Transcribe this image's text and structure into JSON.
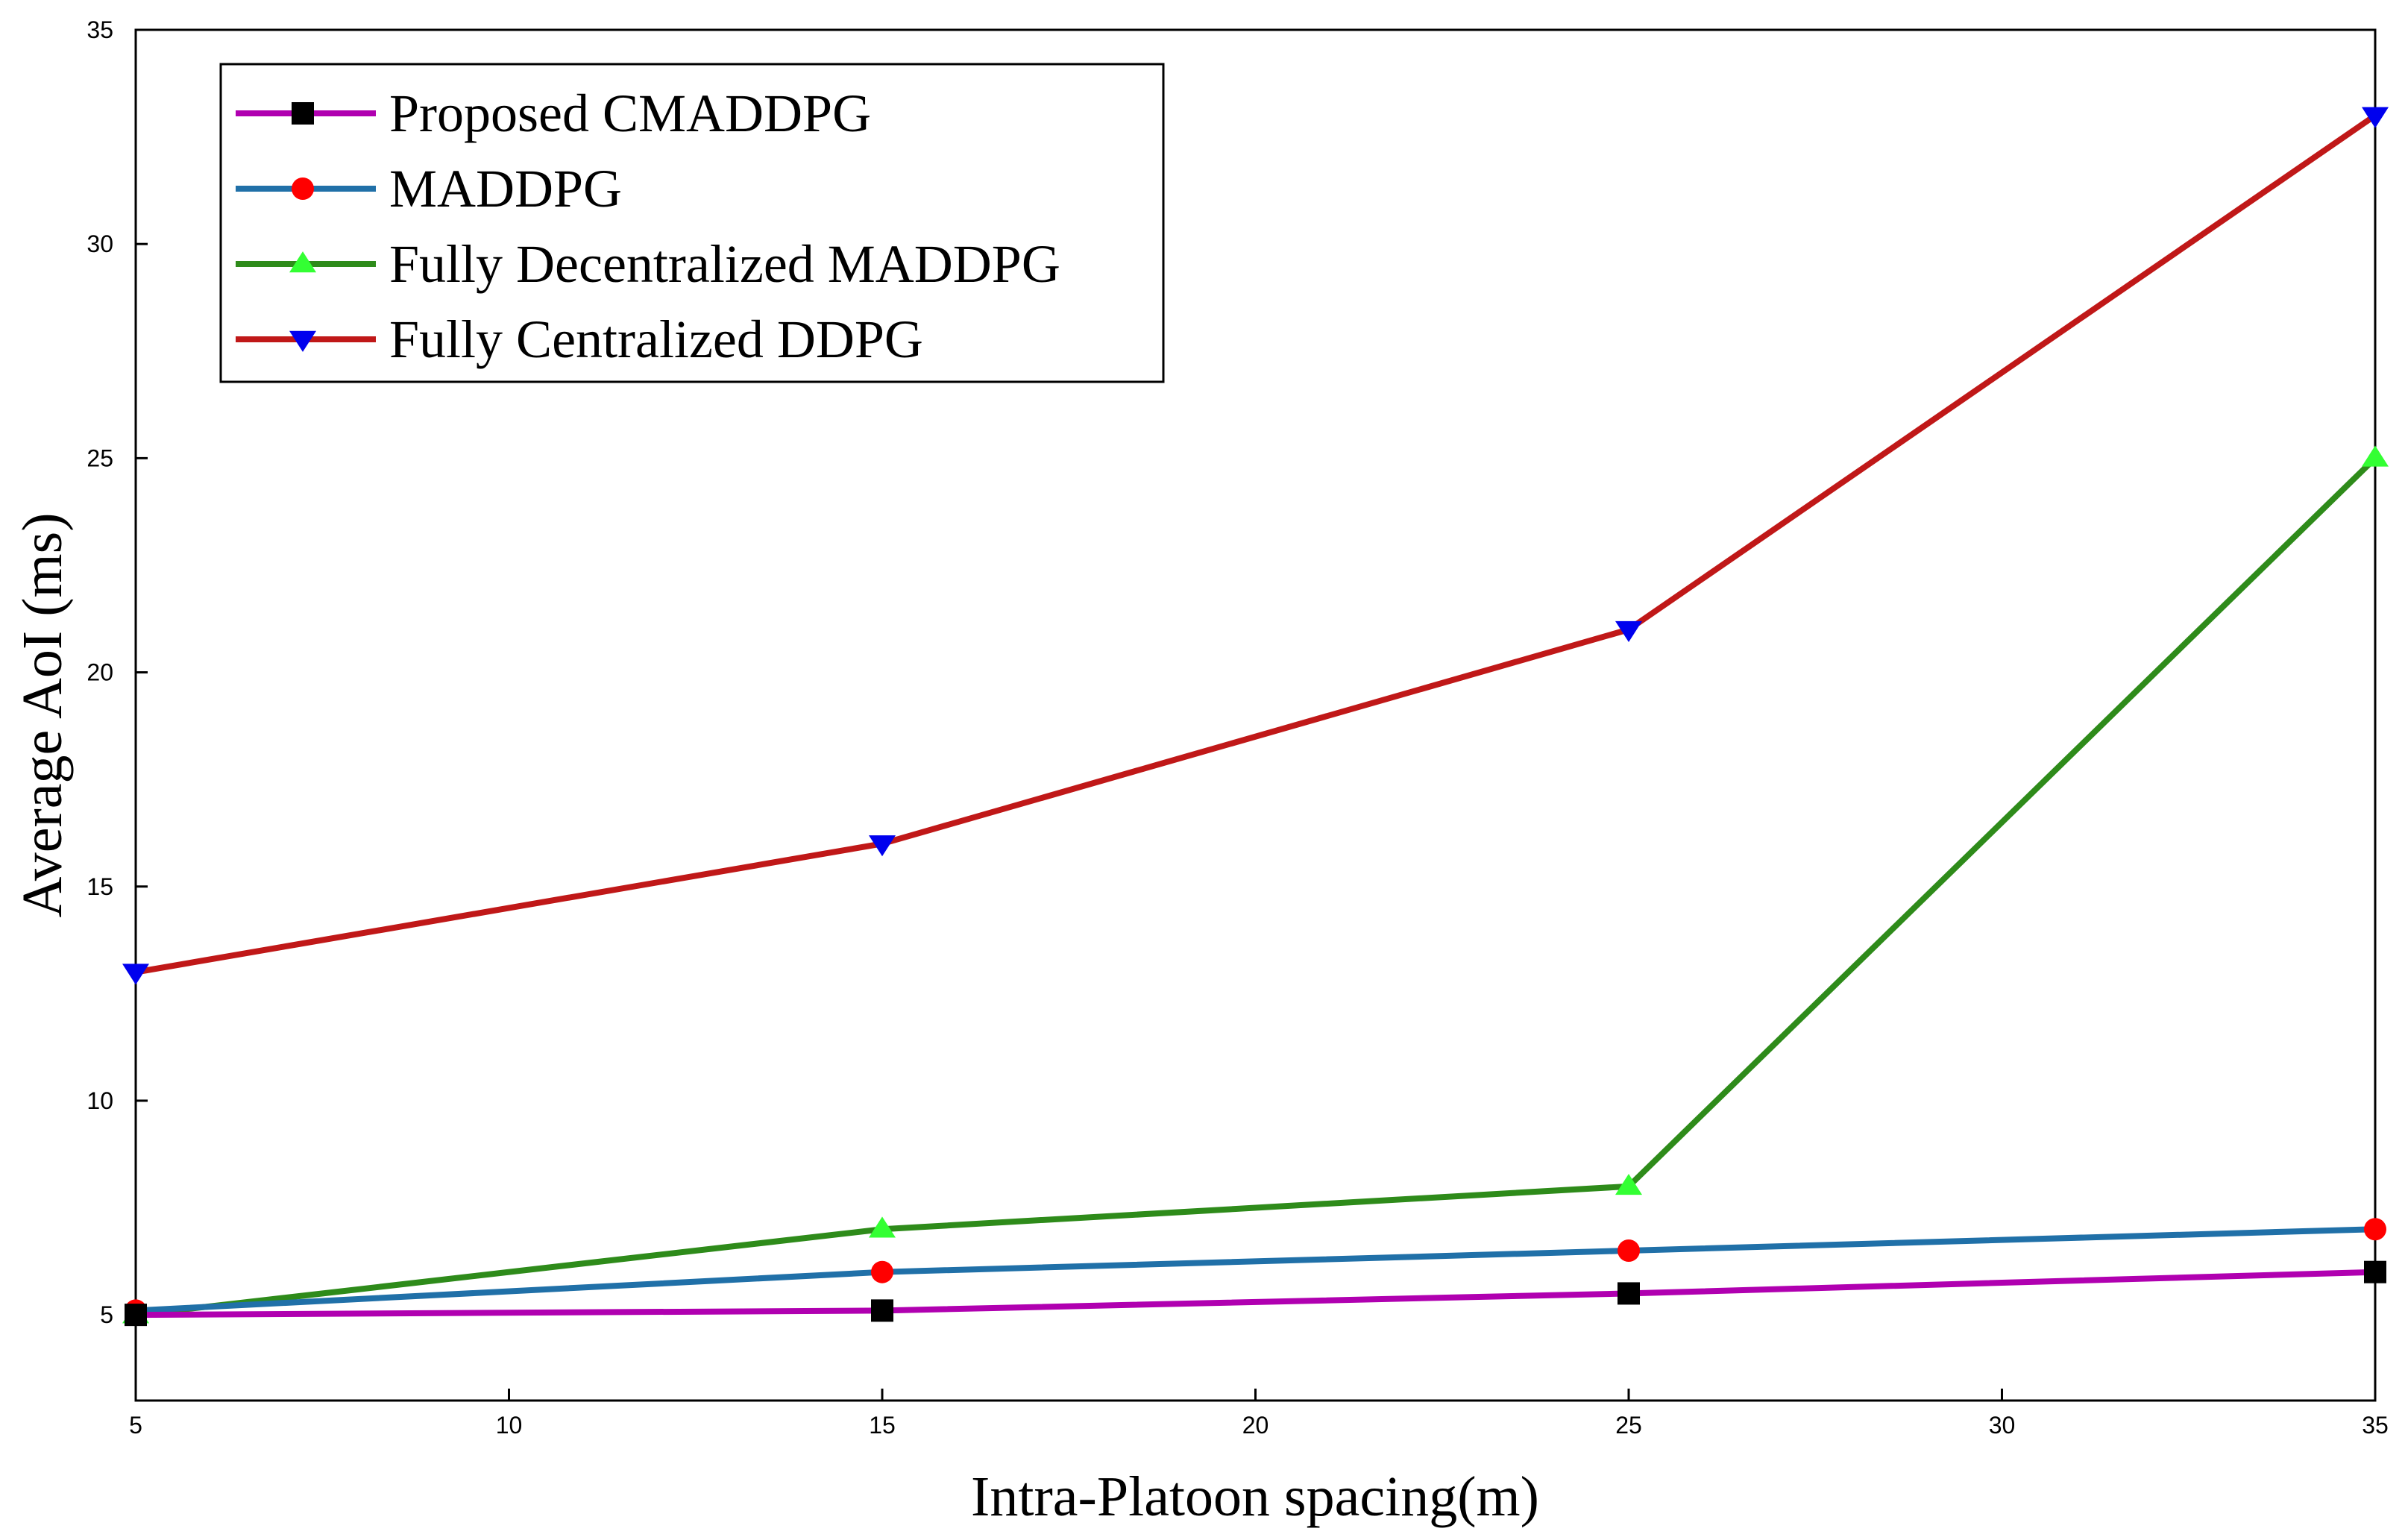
{
  "chart_data": {
    "type": "line",
    "title": "",
    "xlabel": "Intra-Platoon spacing(m)",
    "ylabel": "Average AoI (ms)",
    "xlim": [
      5,
      35
    ],
    "ylim": [
      3,
      35
    ],
    "xticks": [
      5,
      10,
      15,
      20,
      25,
      30,
      35
    ],
    "yticks": [
      5,
      10,
      15,
      20,
      25,
      30,
      35
    ],
    "grid": false,
    "legend_position": "top-left",
    "x": [
      5,
      15,
      25,
      35
    ],
    "series": [
      {
        "name": "Proposed CMADDPG",
        "values": [
          5.0,
          5.1,
          5.5,
          6.0
        ],
        "line_color": "#b000b0",
        "marker": "square",
        "marker_color": "#000000"
      },
      {
        "name": "MADDPG",
        "values": [
          5.1,
          6.0,
          6.5,
          7.0
        ],
        "line_color": "#2070a8",
        "marker": "circle",
        "marker_color": "#ff0000"
      },
      {
        "name": "Fully Decentralized MADDPG",
        "values": [
          5.0,
          7.0,
          8.0,
          25.0
        ],
        "line_color": "#2e8b1a",
        "marker": "triangle-up",
        "marker_color": "#33ff33"
      },
      {
        "name": "Fully Centralized DDPG",
        "values": [
          13.0,
          16.0,
          21.0,
          33.0
        ],
        "line_color": "#c01818",
        "marker": "triangle-down",
        "marker_color": "#0000ee"
      }
    ]
  }
}
